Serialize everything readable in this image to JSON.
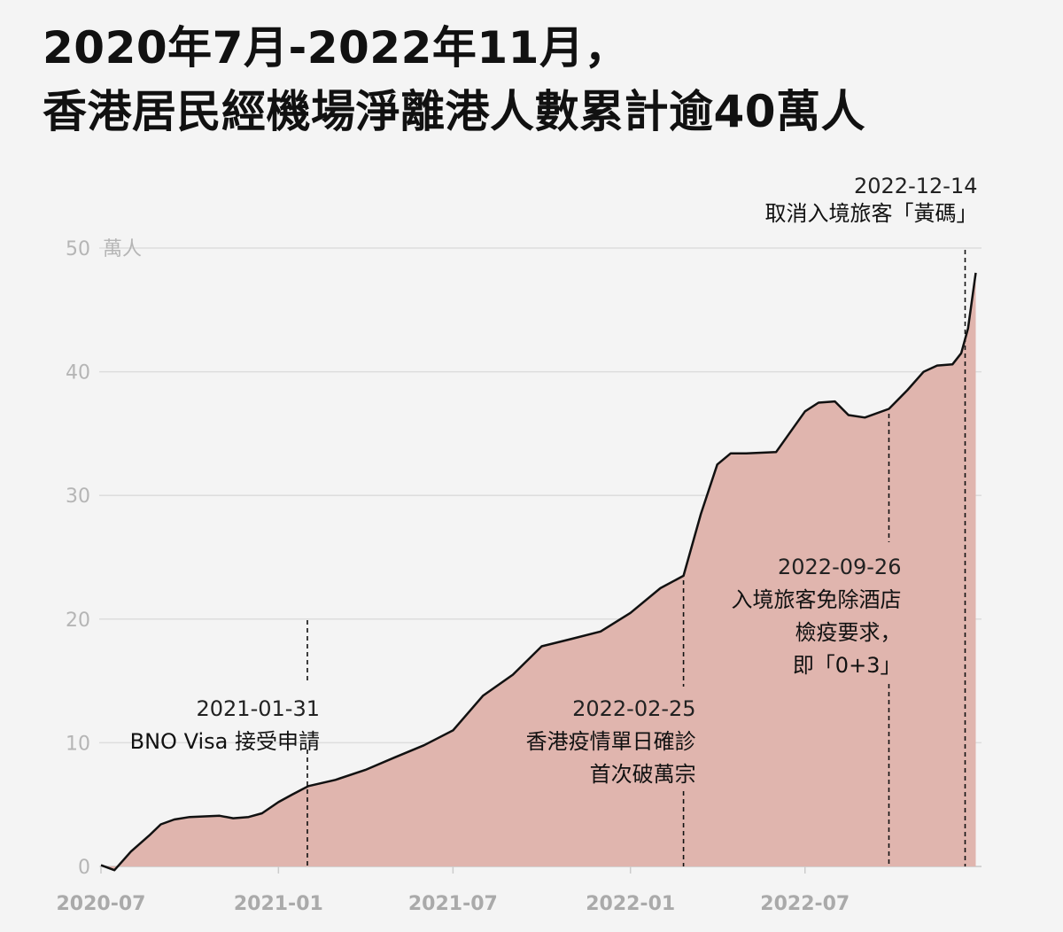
{
  "title": {
    "line1": "2020年7月-2022年11月，",
    "line2": "香港居民經機場淨離港人數累計逾40萬人"
  },
  "colors": {
    "area_fill": "#e0b5ae",
    "line": "#111111",
    "gridline": "#dddddd",
    "background": "#f4f4f4"
  },
  "chart_data": {
    "type": "area",
    "title": "2020年7月-2022年11月，香港居民經機場淨離港人數累計逾40萬人",
    "ylabel": "萬人",
    "ylim": [
      0,
      50
    ],
    "yticks": [
      0,
      10,
      20,
      30,
      40,
      50
    ],
    "y_unit_label": "萬人",
    "xticks": [
      "2020-07",
      "2021-01",
      "2021-07",
      "2022-01",
      "2022-07"
    ],
    "xlim": [
      "2020-07-01",
      "2022-12-31"
    ],
    "grid": true,
    "series": [
      {
        "x": [
          "2020-07-01",
          "2020-07-15",
          "2020-08-01",
          "2020-08-20",
          "2020-09-01",
          "2020-09-15",
          "2020-10-01",
          "2020-11-01",
          "2020-11-15",
          "2020-12-01",
          "2020-12-15",
          "2021-01-01",
          "2021-01-15",
          "2021-02-01",
          "2021-03-01",
          "2021-04-01",
          "2021-05-01",
          "2021-06-01",
          "2021-07-01",
          "2021-08-01",
          "2021-09-01",
          "2021-10-01",
          "2021-11-01",
          "2021-12-01",
          "2022-01-01",
          "2022-02-01",
          "2022-02-25",
          "2022-03-15",
          "2022-04-01",
          "2022-04-15",
          "2022-05-01",
          "2022-06-01",
          "2022-07-01",
          "2022-07-15",
          "2022-08-01",
          "2022-08-15",
          "2022-09-01",
          "2022-09-26",
          "2022-10-15",
          "2022-11-01",
          "2022-11-15",
          "2022-12-01",
          "2022-12-10",
          "2022-12-17",
          "2022-12-25"
        ],
        "y": [
          0.1,
          -0.3,
          1.2,
          2.5,
          3.4,
          3.8,
          4.0,
          4.1,
          3.9,
          4.0,
          4.3,
          5.2,
          5.8,
          6.5,
          7.0,
          7.8,
          8.8,
          9.8,
          11.0,
          13.8,
          15.5,
          17.8,
          18.4,
          19.0,
          20.5,
          22.5,
          23.5,
          28.5,
          32.5,
          33.4,
          33.4,
          33.5,
          36.8,
          37.5,
          37.6,
          36.5,
          36.3,
          37.0,
          38.5,
          40.0,
          40.5,
          40.6,
          41.5,
          43.5,
          48.0
        ]
      }
    ],
    "annotations": [
      {
        "date": "2021-01-31",
        "text": [
          "BNO Visa 接受申請"
        ]
      },
      {
        "date": "2022-02-25",
        "text": [
          "香港疫情單日確診",
          "首次破萬宗"
        ]
      },
      {
        "date": "2022-09-26",
        "text": [
          "入境旅客免除酒店",
          "檢疫要求，",
          "即「0+3」"
        ]
      },
      {
        "date": "2022-12-14",
        "text": [
          "取消入境旅客「黃碼」"
        ]
      }
    ]
  }
}
